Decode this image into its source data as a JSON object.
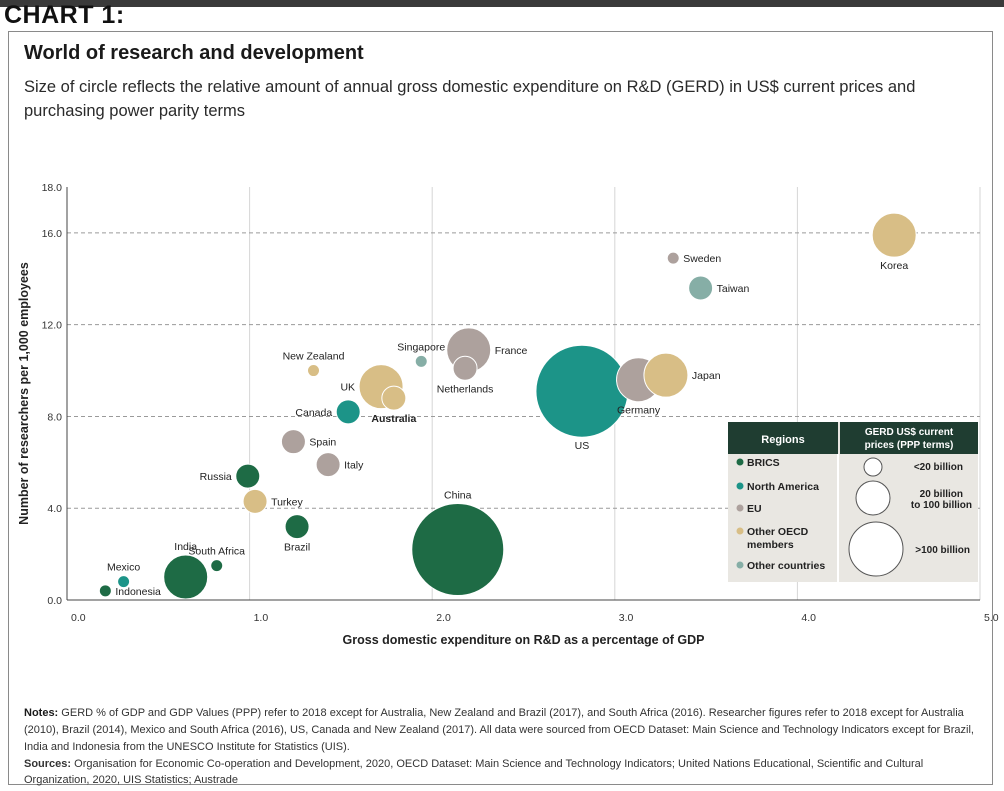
{
  "header": {
    "chart_label": "CHART 1:"
  },
  "chart_data": {
    "type": "scatter",
    "title": "World of research and development",
    "subtitle": "Size of circle reflects the relative amount of annual gross domestic expenditure on R&D (GERD) in US$ current prices and purchasing power parity terms",
    "xlabel": "Gross domestic expenditure on R&D as a percentage of GDP",
    "ylabel": "Number of researchers per 1,000 employees",
    "xlim": [
      0,
      5
    ],
    "ylim": [
      0,
      18
    ],
    "x_ticks": [
      "0.0",
      "1.0",
      "2.0",
      "3.0",
      "4.0",
      "5.0"
    ],
    "y_ticks": [
      "0.0",
      "4.0",
      "8.0",
      "12.0",
      "16.0",
      "18.0"
    ],
    "y_tick_values": [
      0,
      4,
      8,
      12,
      16,
      18
    ],
    "region_colors": {
      "BRICS": "#1e6b45",
      "North America": "#1c9488",
      "EU": "#ada19d",
      "Other OECD members": "#d8be86",
      "Other countries": "#86aea6"
    },
    "points": [
      {
        "label": "China",
        "x": 2.14,
        "y": 2.2,
        "size_class": "large",
        "region": "BRICS",
        "label_pos": "above"
      },
      {
        "label": "US",
        "x": 2.82,
        "y": 9.1,
        "size_class": "large",
        "region": "North America",
        "label_pos": "below"
      },
      {
        "label": "Germany",
        "x": 3.13,
        "y": 9.6,
        "size_class": "medium",
        "region": "EU",
        "label_pos": "below"
      },
      {
        "label": "Japan",
        "x": 3.28,
        "y": 9.8,
        "size_class": "medium",
        "region": "Other OECD members",
        "label_pos": "right"
      },
      {
        "label": "Korea",
        "x": 4.53,
        "y": 15.9,
        "size_class": "medium",
        "region": "Other OECD members",
        "label_pos": "below"
      },
      {
        "label": "France",
        "x": 2.2,
        "y": 10.9,
        "size_class": "medium",
        "region": "EU",
        "label_pos": "right"
      },
      {
        "label": "Netherlands",
        "x": 2.18,
        "y": 10.1,
        "size_class": "small",
        "region": "EU",
        "label_pos": "below"
      },
      {
        "label": "UK",
        "x": 1.72,
        "y": 9.3,
        "size_class": "medium",
        "region": "Other OECD members",
        "label_pos": "left"
      },
      {
        "label": "Australia",
        "x": 1.79,
        "y": 8.8,
        "size_class": "small",
        "region": "Other OECD members",
        "label_pos": "below"
      },
      {
        "label": "Canada",
        "x": 1.54,
        "y": 8.2,
        "size_class": "small",
        "region": "North America",
        "label_pos": "left"
      },
      {
        "label": "Singapore",
        "x": 1.94,
        "y": 10.4,
        "size_class": "tiny",
        "region": "Other countries",
        "label_pos": "above"
      },
      {
        "label": "New Zealand",
        "x": 1.35,
        "y": 10.0,
        "size_class": "tiny",
        "region": "Other OECD members",
        "label_pos": "above"
      },
      {
        "label": "Sweden",
        "x": 3.32,
        "y": 14.9,
        "size_class": "tiny",
        "region": "EU",
        "label_pos": "right"
      },
      {
        "label": "Taiwan",
        "x": 3.47,
        "y": 13.6,
        "size_class": "small",
        "region": "Other countries",
        "label_pos": "right"
      },
      {
        "label": "Spain",
        "x": 1.24,
        "y": 6.9,
        "size_class": "small",
        "region": "EU",
        "label_pos": "right"
      },
      {
        "label": "Italy",
        "x": 1.43,
        "y": 5.9,
        "size_class": "small",
        "region": "EU",
        "label_pos": "right"
      },
      {
        "label": "Russia",
        "x": 0.99,
        "y": 5.4,
        "size_class": "small",
        "region": "BRICS",
        "label_pos": "left"
      },
      {
        "label": "Turkey",
        "x": 1.03,
        "y": 4.3,
        "size_class": "small",
        "region": "Other OECD members",
        "label_pos": "right"
      },
      {
        "label": "Brazil",
        "x": 1.26,
        "y": 3.2,
        "size_class": "small",
        "region": "BRICS",
        "label_pos": "below"
      },
      {
        "label": "South Africa",
        "x": 0.82,
        "y": 1.5,
        "size_class": "tiny",
        "region": "BRICS",
        "label_pos": "above"
      },
      {
        "label": "India",
        "x": 0.65,
        "y": 1.0,
        "size_class": "medium",
        "region": "BRICS",
        "label_pos": "above"
      },
      {
        "label": "Mexico",
        "x": 0.31,
        "y": 0.8,
        "size_class": "tiny",
        "region": "North America",
        "label_pos": "above"
      },
      {
        "label": "Indonesia",
        "x": 0.21,
        "y": 0.4,
        "size_class": "tiny",
        "region": "BRICS",
        "label_pos": "right"
      }
    ],
    "legend": {
      "regions_title": "Regions",
      "size_title": "GERD US$ current prices (PPP terms)",
      "regions": [
        {
          "label": "BRICS",
          "color": "#1e6b45"
        },
        {
          "label": "North America",
          "color": "#1c9488"
        },
        {
          "label": "EU",
          "color": "#ada19d"
        },
        {
          "label": "Other OECD members",
          "color": "#d8be86"
        },
        {
          "label": "Other countries",
          "color": "#86aea6"
        }
      ],
      "sizes": [
        "<20 billion",
        "20 billion to 100 billion",
        ">100 billion"
      ],
      "placement": "bottom-right"
    }
  },
  "footer": {
    "notes_label": "Notes:",
    "notes_text": "GERD % of GDP and GDP Values (PPP) refer to 2018 except for Australia, New Zealand and Brazil (2017), and South Africa (2016). Researcher figures refer to 2018 except for Australia (2010), Brazil (2014), Mexico and South Africa (2016), US, Canada and New Zealand (2017). All data were sourced from OECD Dataset: Main Science and Technology Indicators except for Brazil, India and Indonesia from the UNESCO Institute for Statistics (UIS).",
    "sources_label": "Sources:",
    "sources_text": "Organisation for Economic Co-operation and Development, 2020, OECD Dataset: Main Science and Technology Indicators; United Nations Educational, Scientific and Cultural Organization, 2020, UIS Statistics; Austrade"
  }
}
